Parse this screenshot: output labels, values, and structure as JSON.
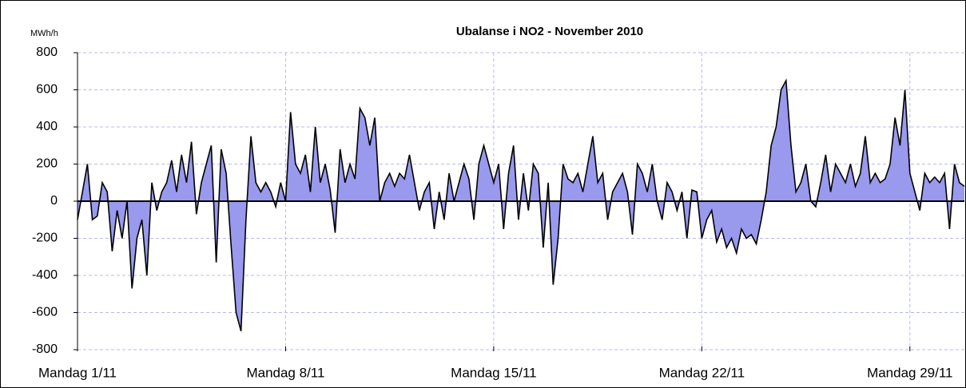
{
  "chart_data": {
    "type": "area",
    "title": "Ubalanse i NO2  - November 2010",
    "y_label": "MWh/h",
    "categories": [
      "Mandag  1/11",
      null,
      null,
      null,
      null,
      null,
      null,
      null,
      null,
      null,
      null,
      null,
      null,
      null,
      null,
      null,
      null,
      null,
      null,
      null,
      null,
      null,
      null,
      null,
      null,
      null,
      null,
      null,
      null,
      null,
      null,
      null,
      null,
      null,
      null,
      null,
      null,
      null,
      null,
      null,
      null,
      null,
      "Mandag  8/11",
      null,
      null,
      null,
      null,
      null,
      null,
      null,
      null,
      null,
      null,
      null,
      null,
      null,
      null,
      null,
      null,
      null,
      null,
      null,
      null,
      null,
      null,
      null,
      null,
      null,
      null,
      null,
      null,
      null,
      null,
      null,
      null,
      null,
      null,
      null,
      null,
      null,
      null,
      null,
      null,
      null,
      "Mandag  15/11",
      null,
      null,
      null,
      null,
      null,
      null,
      null,
      null,
      null,
      null,
      null,
      null,
      null,
      null,
      null,
      null,
      null,
      null,
      null,
      null,
      null,
      null,
      null,
      null,
      null,
      null,
      null,
      null,
      null,
      null,
      null,
      null,
      null,
      null,
      null,
      null,
      null,
      null,
      null,
      null,
      null,
      "Mandag  22/11",
      null,
      null,
      null,
      null,
      null,
      null,
      null,
      null,
      null,
      null,
      null,
      null,
      null,
      null,
      null,
      null,
      null,
      null,
      null,
      null,
      null,
      null,
      null,
      null,
      null,
      null,
      null,
      null,
      null,
      null,
      null,
      null,
      null,
      null,
      null,
      null,
      null,
      null,
      null,
      null,
      null,
      "Mandag 29/11",
      null,
      null,
      null,
      null,
      null,
      null,
      null,
      null,
      null,
      null,
      null
    ],
    "values": [
      -100,
      50,
      200,
      -100,
      -80,
      100,
      50,
      -270,
      -50,
      -200,
      0,
      -470,
      -200,
      -100,
      -400,
      100,
      -50,
      50,
      100,
      220,
      50,
      250,
      100,
      320,
      -70,
      100,
      200,
      300,
      -330,
      280,
      150,
      -240,
      -600,
      -700,
      -100,
      350,
      100,
      50,
      100,
      50,
      -30,
      100,
      0,
      480,
      200,
      150,
      250,
      50,
      400,
      100,
      200,
      60,
      -170,
      280,
      100,
      200,
      120,
      500,
      450,
      300,
      450,
      0,
      100,
      150,
      80,
      150,
      120,
      250,
      100,
      -50,
      50,
      100,
      -150,
      50,
      -100,
      150,
      0,
      100,
      200,
      120,
      -100,
      200,
      300,
      200,
      100,
      200,
      -150,
      150,
      300,
      -100,
      150,
      -50,
      200,
      150,
      -250,
      100,
      -450,
      -200,
      200,
      120,
      100,
      150,
      50,
      200,
      350,
      100,
      150,
      -100,
      50,
      100,
      150,
      50,
      -180,
      200,
      150,
      50,
      200,
      0,
      -100,
      100,
      50,
      -50,
      50,
      -200,
      60,
      50,
      -200,
      -100,
      -50,
      -220,
      -150,
      -250,
      -200,
      -280,
      -150,
      -200,
      -180,
      -230,
      -100,
      50,
      300,
      400,
      600,
      650,
      300,
      50,
      100,
      200,
      0,
      -30,
      100,
      250,
      50,
      200,
      150,
      100,
      200,
      80,
      150,
      350,
      100,
      150,
      100,
      120,
      200,
      450,
      300,
      600,
      150,
      50,
      -50,
      150,
      100,
      130,
      100,
      150,
      -150,
      200,
      100,
      80
    ],
    "color": "#9999ee",
    "line_color": "#000000",
    "ylim": [
      -800,
      800
    ],
    "yticks": [
      -800,
      -600,
      -400,
      -200,
      0,
      200,
      400,
      600,
      800
    ],
    "grid": true
  }
}
